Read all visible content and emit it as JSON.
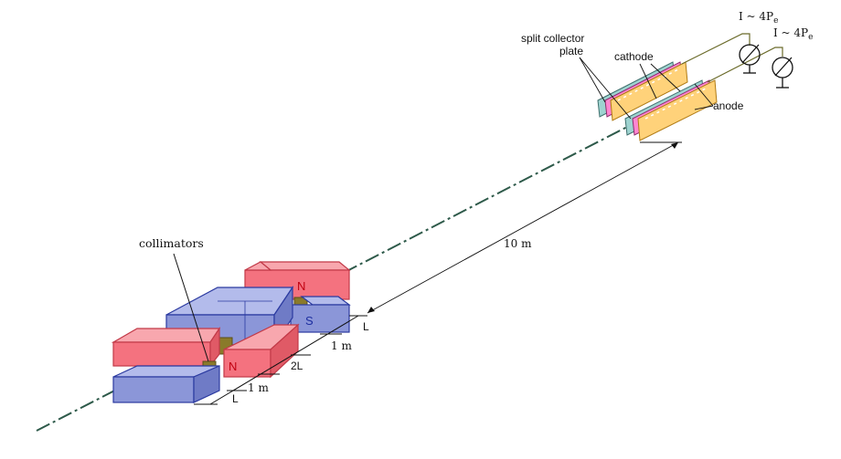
{
  "labels": {
    "collimators": "collimators",
    "split_collector": [
      "split collector",
      "plate"
    ],
    "cathode": "cathode",
    "anode": "anode",
    "distance_10m": "10 m",
    "current_1": "I ~ 4P",
    "current_2": "I ~ 4P",
    "current_subscript": "e",
    "dim_L_top": "L",
    "dim_1m_upper": "1 m",
    "dim_2L": "2L",
    "dim_1m_lower": "1 m",
    "dim_L_bottom": "L",
    "pole_N_upper": "N",
    "pole_S_upper": "S",
    "pole_N_lower": "N"
  },
  "colors": {
    "magnet_red": "#f4727f",
    "magnet_blue": "#8b96d8",
    "collimator": "#8a7a2a",
    "beam_line": "#2e5a4a",
    "plate_yellow": "#ffd27a",
    "plate_pink": "#ff86d0",
    "plate_teal": "#9ed3d0"
  }
}
